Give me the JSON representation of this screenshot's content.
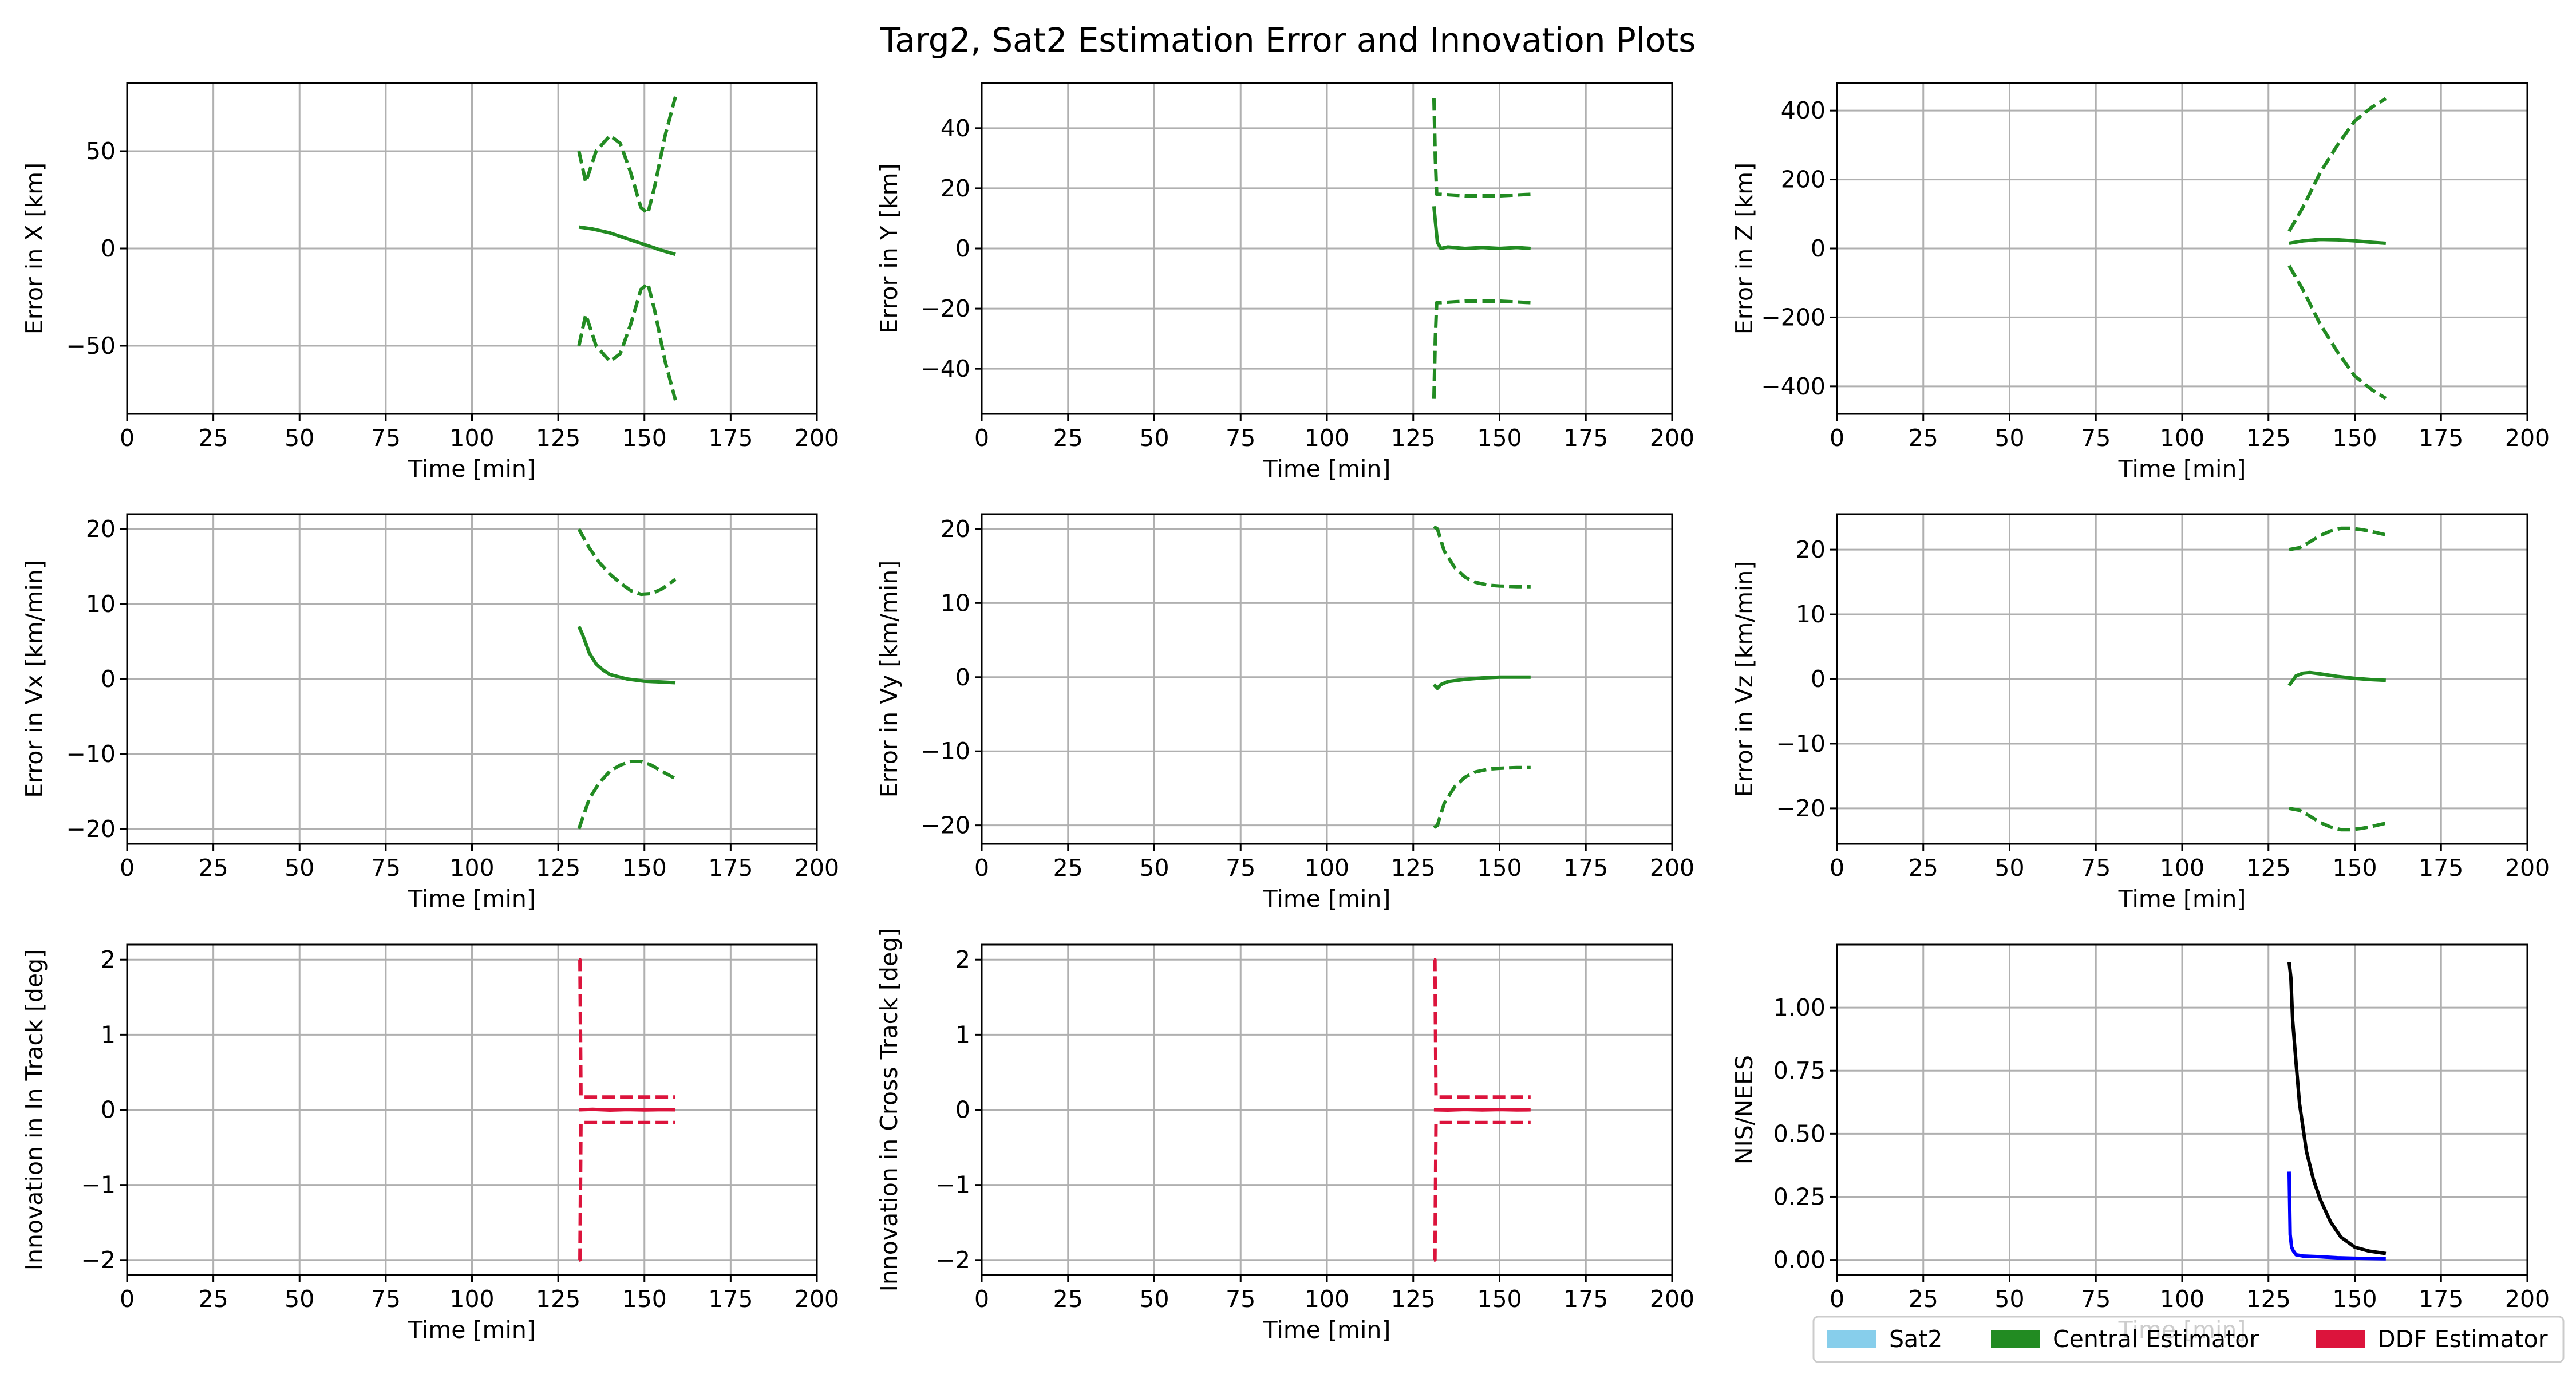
{
  "figure_title": "Targ2, Sat2 Estimation Error and Innovation Plots",
  "colors": {
    "sat2": "#87CEEB",
    "central": "#228B22",
    "ddf": "#DC143C",
    "nis": "#0000FF",
    "nees": "#000000"
  },
  "legend": {
    "placement": "lower-right",
    "entries": [
      {
        "label": "Sat2",
        "color": "#87CEEB"
      },
      {
        "label": "Central Estimator",
        "color": "#228B22"
      },
      {
        "label": "DDF Estimator",
        "color": "#DC143C"
      }
    ]
  },
  "chart_data": [
    {
      "id": "x",
      "type": "line",
      "title": "",
      "xlabel": "Time [min]",
      "ylabel": "Error in X [km]",
      "xlim": [
        0,
        200
      ],
      "ylim": [
        -85,
        85
      ],
      "xticks": [
        0,
        25,
        50,
        75,
        100,
        125,
        150,
        175,
        200
      ],
      "yticks": [
        -50,
        0,
        50
      ],
      "grid": true,
      "series": [
        {
          "role": "central_error",
          "color": "#228B22",
          "style": "solid",
          "x": [
            131,
            135,
            140,
            145,
            150,
            155,
            159
          ],
          "y": [
            11,
            10,
            8,
            5,
            2,
            -1,
            -3
          ]
        },
        {
          "role": "central_bound_upper",
          "color": "#228B22",
          "style": "dashed",
          "x": [
            131,
            133,
            136,
            140,
            143,
            146,
            149,
            151,
            153,
            156,
            159
          ],
          "y": [
            50,
            34,
            50,
            58,
            54,
            39,
            21,
            18,
            32,
            58,
            78
          ]
        },
        {
          "role": "central_bound_lower",
          "color": "#228B22",
          "style": "dashed",
          "x": [
            131,
            133,
            136,
            140,
            143,
            146,
            149,
            151,
            153,
            156,
            159
          ],
          "y": [
            -50,
            -34,
            -50,
            -58,
            -54,
            -39,
            -21,
            -18,
            -32,
            -58,
            -78
          ]
        }
      ]
    },
    {
      "id": "y",
      "type": "line",
      "title": "",
      "xlabel": "Time [min]",
      "ylabel": "Error in Y [km]",
      "xlim": [
        0,
        200
      ],
      "ylim": [
        -55,
        55
      ],
      "xticks": [
        0,
        25,
        50,
        75,
        100,
        125,
        150,
        175,
        200
      ],
      "yticks": [
        -40,
        -20,
        0,
        20,
        40
      ],
      "grid": true,
      "series": [
        {
          "role": "central_error",
          "color": "#228B22",
          "style": "solid",
          "x": [
            131,
            131.5,
            132,
            133,
            135,
            140,
            145,
            150,
            155,
            159
          ],
          "y": [
            14,
            8,
            2,
            0,
            0.5,
            0,
            0.3,
            0,
            0.3,
            0
          ]
        },
        {
          "role": "central_bound_upper",
          "color": "#228B22",
          "style": "dashed",
          "x": [
            131,
            131.4,
            131.8,
            133,
            140,
            150,
            159
          ],
          "y": [
            50,
            30,
            18,
            18,
            17.5,
            17.5,
            18
          ]
        },
        {
          "role": "central_bound_lower",
          "color": "#228B22",
          "style": "dashed",
          "x": [
            131,
            131.4,
            131.8,
            133,
            140,
            150,
            159
          ],
          "y": [
            -50,
            -30,
            -18,
            -18,
            -17.5,
            -17.5,
            -18
          ]
        }
      ]
    },
    {
      "id": "z",
      "type": "line",
      "title": "",
      "xlabel": "Time [min]",
      "ylabel": "Error in Z [km]",
      "xlim": [
        0,
        200
      ],
      "ylim": [
        -480,
        480
      ],
      "xticks": [
        0,
        25,
        50,
        75,
        100,
        125,
        150,
        175,
        200
      ],
      "yticks": [
        -400,
        -200,
        0,
        200,
        400
      ],
      "grid": true,
      "series": [
        {
          "role": "central_error",
          "color": "#228B22",
          "style": "solid",
          "x": [
            131,
            135,
            140,
            145,
            150,
            155,
            159
          ],
          "y": [
            15,
            22,
            26,
            25,
            22,
            18,
            15
          ]
        },
        {
          "role": "central_bound_upper",
          "color": "#228B22",
          "style": "dashed",
          "x": [
            131,
            135,
            140,
            145,
            150,
            155,
            159
          ],
          "y": [
            50,
            120,
            220,
            300,
            370,
            410,
            435
          ]
        },
        {
          "role": "central_bound_lower",
          "color": "#228B22",
          "style": "dashed",
          "x": [
            131,
            135,
            140,
            145,
            150,
            155,
            159
          ],
          "y": [
            -50,
            -120,
            -220,
            -300,
            -370,
            -410,
            -435
          ]
        }
      ]
    },
    {
      "id": "vx",
      "type": "line",
      "title": "",
      "xlabel": "Time [min]",
      "ylabel": "Error in Vx [km/min]",
      "xlim": [
        0,
        200
      ],
      "ylim": [
        -22,
        22
      ],
      "xticks": [
        0,
        25,
        50,
        75,
        100,
        125,
        150,
        175,
        200
      ],
      "yticks": [
        -20,
        -10,
        0,
        10,
        20
      ],
      "grid": true,
      "series": [
        {
          "role": "central_error",
          "color": "#228B22",
          "style": "solid",
          "x": [
            131,
            132,
            134,
            136,
            138,
            140,
            145,
            150,
            155,
            159
          ],
          "y": [
            7,
            6,
            3.5,
            2,
            1.2,
            0.6,
            0,
            -0.3,
            -0.4,
            -0.5
          ]
        },
        {
          "role": "central_bound_upper",
          "color": "#228B22",
          "style": "dashed",
          "x": [
            131,
            134,
            137,
            140,
            143,
            146,
            149,
            152,
            155,
            159
          ],
          "y": [
            20,
            17.5,
            15.5,
            14,
            12.8,
            11.8,
            11.3,
            11.4,
            12,
            13.3
          ]
        },
        {
          "role": "central_bound_lower",
          "color": "#228B22",
          "style": "dashed",
          "x": [
            131,
            134,
            137,
            140,
            143,
            146,
            149,
            152,
            155,
            159
          ],
          "y": [
            -20,
            -16,
            -13.8,
            -12.3,
            -11.5,
            -11,
            -11,
            -11.5,
            -12.3,
            -13.3
          ]
        }
      ]
    },
    {
      "id": "vy",
      "type": "line",
      "title": "",
      "xlabel": "Time [min]",
      "ylabel": "Error in Vy [km/min]",
      "xlim": [
        0,
        200
      ],
      "ylim": [
        -22.5,
        22
      ],
      "xticks": [
        0,
        25,
        50,
        75,
        100,
        125,
        150,
        175,
        200
      ],
      "yticks": [
        -20,
        -10,
        0,
        10,
        20
      ],
      "grid": true,
      "series": [
        {
          "role": "central_error",
          "color": "#228B22",
          "style": "solid",
          "x": [
            131,
            132,
            133,
            135,
            140,
            145,
            150,
            155,
            159
          ],
          "y": [
            -1,
            -1.5,
            -1,
            -0.6,
            -0.3,
            -0.1,
            0,
            0,
            0
          ]
        },
        {
          "role": "central_bound_upper",
          "color": "#228B22",
          "style": "dashed",
          "x": [
            131,
            132,
            134,
            137,
            140,
            143,
            147,
            150,
            155,
            159
          ],
          "y": [
            20.3,
            20,
            17,
            14.8,
            13.5,
            12.8,
            12.4,
            12.3,
            12.2,
            12.2
          ]
        },
        {
          "role": "central_bound_lower",
          "color": "#228B22",
          "style": "dashed",
          "x": [
            131,
            132,
            134,
            137,
            140,
            143,
            147,
            150,
            155,
            159
          ],
          "y": [
            -20.3,
            -20,
            -17,
            -14.8,
            -13.5,
            -12.8,
            -12.4,
            -12.3,
            -12.2,
            -12.2
          ]
        }
      ]
    },
    {
      "id": "vz",
      "type": "line",
      "title": "",
      "xlabel": "Time [min]",
      "ylabel": "Error in Vz [km/min]",
      "xlim": [
        0,
        200
      ],
      "ylim": [
        -25.5,
        25.5
      ],
      "xticks": [
        0,
        25,
        50,
        75,
        100,
        125,
        150,
        175,
        200
      ],
      "yticks": [
        -20,
        -10,
        0,
        10,
        20
      ],
      "grid": true,
      "series": [
        {
          "role": "central_error",
          "color": "#228B22",
          "style": "solid",
          "x": [
            131,
            133,
            135,
            137,
            140,
            145,
            150,
            155,
            159
          ],
          "y": [
            -1,
            0.5,
            0.9,
            1,
            0.8,
            0.4,
            0.1,
            -0.1,
            -0.2
          ]
        },
        {
          "role": "central_bound_upper",
          "color": "#228B22",
          "style": "dashed",
          "x": [
            131,
            134,
            137,
            140,
            143,
            146,
            149,
            152,
            155,
            159
          ],
          "y": [
            20,
            20.3,
            21.2,
            22.2,
            22.9,
            23.3,
            23.3,
            23.1,
            22.8,
            22.3
          ]
        },
        {
          "role": "central_bound_lower",
          "color": "#228B22",
          "style": "dashed",
          "x": [
            131,
            134,
            137,
            140,
            143,
            146,
            149,
            152,
            155,
            159
          ],
          "y": [
            -20,
            -20.3,
            -21.2,
            -22.2,
            -22.9,
            -23.3,
            -23.3,
            -23.1,
            -22.8,
            -22.3
          ]
        }
      ]
    },
    {
      "id": "in_track",
      "type": "line",
      "title": "",
      "xlabel": "Time [min]",
      "ylabel": "Innovation in In Track [deg]",
      "xlim": [
        0,
        200
      ],
      "ylim": [
        -2.2,
        2.2
      ],
      "xticks": [
        0,
        25,
        50,
        75,
        100,
        125,
        150,
        175,
        200
      ],
      "yticks": [
        -2,
        -1,
        0,
        1,
        2
      ],
      "grid": true,
      "series": [
        {
          "role": "ddf_innovation",
          "color": "#DC143C",
          "style": "solid",
          "x": [
            131,
            135,
            140,
            145,
            150,
            155,
            159
          ],
          "y": [
            0,
            0.005,
            -0.004,
            0.003,
            -0.002,
            0.002,
            0
          ]
        },
        {
          "role": "ddf_bound_upper",
          "color": "#DC143C",
          "style": "dashed",
          "x": [
            131,
            131.3,
            131.6,
            132,
            159
          ],
          "y": [
            2,
            2,
            0.17,
            0.17,
            0.17
          ]
        },
        {
          "role": "ddf_bound_lower",
          "color": "#DC143C",
          "style": "dashed",
          "x": [
            131,
            131.3,
            131.6,
            132,
            159
          ],
          "y": [
            -2,
            -2,
            -0.17,
            -0.17,
            -0.17
          ]
        }
      ]
    },
    {
      "id": "cross_track",
      "type": "line",
      "title": "",
      "xlabel": "Time [min]",
      "ylabel": "Innovation in Cross Track [deg]",
      "xlim": [
        0,
        200
      ],
      "ylim": [
        -2.2,
        2.2
      ],
      "xticks": [
        0,
        25,
        50,
        75,
        100,
        125,
        150,
        175,
        200
      ],
      "yticks": [
        -2,
        -1,
        0,
        1,
        2
      ],
      "grid": true,
      "series": [
        {
          "role": "ddf_innovation",
          "color": "#DC143C",
          "style": "solid",
          "x": [
            131,
            135,
            140,
            145,
            150,
            155,
            159
          ],
          "y": [
            0,
            -0.004,
            0.004,
            -0.002,
            0.003,
            -0.002,
            0
          ]
        },
        {
          "role": "ddf_bound_upper",
          "color": "#DC143C",
          "style": "dashed",
          "x": [
            131,
            131.3,
            131.6,
            132,
            159
          ],
          "y": [
            2,
            2,
            0.17,
            0.17,
            0.17
          ]
        },
        {
          "role": "ddf_bound_lower",
          "color": "#DC143C",
          "style": "dashed",
          "x": [
            131,
            131.3,
            131.6,
            132,
            159
          ],
          "y": [
            -2,
            -2,
            -0.17,
            -0.17,
            -0.17
          ]
        }
      ]
    },
    {
      "id": "nis_nees",
      "type": "line",
      "title": "",
      "xlabel": "Time [min]",
      "ylabel": "NIS/NEES",
      "xlim": [
        0,
        200
      ],
      "ylim": [
        -0.06,
        1.25
      ],
      "xticks": [
        0,
        25,
        50,
        75,
        100,
        125,
        150,
        175,
        200
      ],
      "yticks": [
        0.0,
        0.25,
        0.5,
        0.75,
        1.0
      ],
      "ytick_labels": [
        "0.00",
        "0.25",
        "0.50",
        "0.75",
        "1.00"
      ],
      "grid": true,
      "series": [
        {
          "role": "nees",
          "color": "#000000",
          "style": "solid",
          "x": [
            131,
            131.5,
            132,
            133,
            134,
            136,
            138,
            140,
            143,
            146,
            150,
            154,
            159
          ],
          "y": [
            1.18,
            1.12,
            0.95,
            0.78,
            0.62,
            0.43,
            0.32,
            0.24,
            0.15,
            0.09,
            0.05,
            0.035,
            0.025
          ]
        },
        {
          "role": "nis",
          "color": "#0000FF",
          "style": "solid",
          "x": [
            131,
            131.3,
            131.7,
            132.2,
            133,
            135,
            140,
            145,
            150,
            155,
            159
          ],
          "y": [
            0.35,
            0.1,
            0.05,
            0.035,
            0.02,
            0.015,
            0.012,
            0.008,
            0.006,
            0.005,
            0.004
          ]
        }
      ]
    }
  ]
}
